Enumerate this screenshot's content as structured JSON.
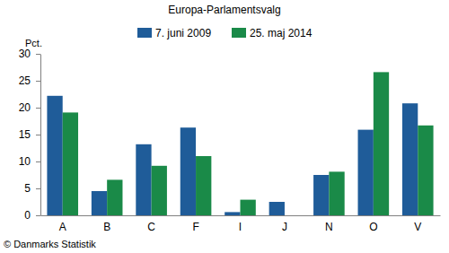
{
  "chart_data": {
    "type": "bar",
    "title": "Europa-Parlamentsvalg",
    "y_label": "Pct.",
    "source": "© Danmarks Statistik",
    "categories": [
      "A",
      "B",
      "C",
      "F",
      "I",
      "J",
      "N",
      "O",
      "V"
    ],
    "series": [
      {
        "name": "7. juni 2009",
        "color": "#1f5c99",
        "values": [
          22.2,
          4.5,
          13.2,
          16.3,
          0.6,
          2.5,
          7.5,
          15.9,
          20.8
        ]
      },
      {
        "name": "25. maj 2014",
        "color": "#1a8a48",
        "values": [
          19.1,
          6.6,
          9.2,
          11.0,
          2.9,
          null,
          8.1,
          26.6,
          16.7
        ]
      }
    ],
    "ylim": [
      0,
      30
    ],
    "yticks": [
      0,
      5,
      10,
      15,
      20,
      25,
      30
    ],
    "grid": false,
    "legend": "top"
  }
}
